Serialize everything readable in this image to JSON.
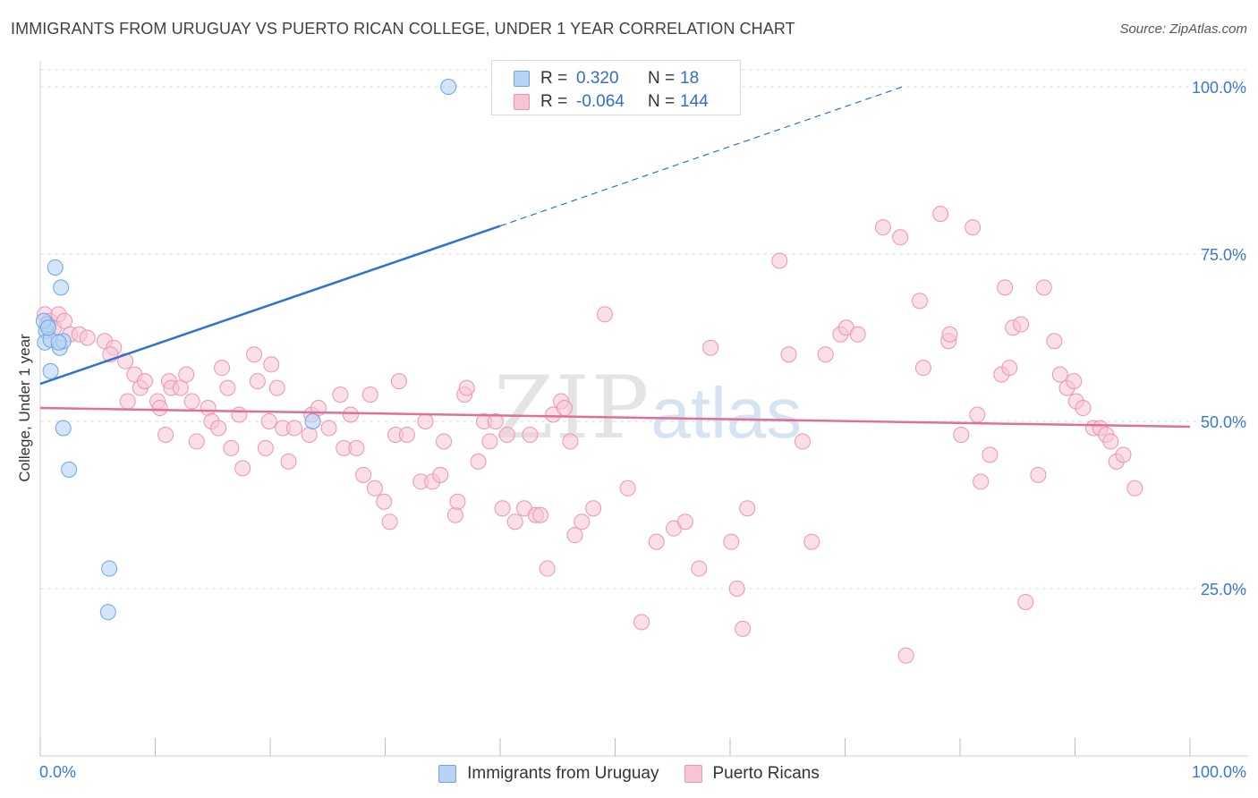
{
  "header": {
    "title": "IMMIGRANTS FROM URUGUAY VS PUERTO RICAN COLLEGE, UNDER 1 YEAR CORRELATION CHART",
    "source": "Source: ZipAtlas.com"
  },
  "watermark": {
    "zip": "ZIP",
    "atlas": "atlas"
  },
  "legend_top": {
    "rows": [
      {
        "r_label": "R =",
        "r_value": "0.320",
        "n_label": "N =",
        "n_value": "18"
      },
      {
        "r_label": "R =",
        "r_value": "-0.064",
        "n_label": "N =",
        "n_value": "144"
      }
    ]
  },
  "legend_bottom": {
    "series_a": "Immigrants from Uruguay",
    "series_b": "Puerto Ricans"
  },
  "colors": {
    "blue_fill": "#b6d3f5",
    "blue_stroke": "#6fa3e6",
    "blue_line": "#2f72d0",
    "pink_fill": "#f8c4d4",
    "pink_stroke": "#ec94b2",
    "pink_line": "#e0709a",
    "grid": "#dcdcdc",
    "tick_label": "#3a78d0"
  },
  "chart_data": {
    "type": "scatter",
    "title": "IMMIGRANTS FROM URUGUAY VS PUERTO RICAN COLLEGE, UNDER 1 YEAR CORRELATION CHART",
    "xlabel": "",
    "ylabel": "College, Under 1 year",
    "xlim": [
      0,
      100
    ],
    "ylim": [
      0,
      102
    ],
    "x_tick_labels": [
      "0.0%",
      "100.0%"
    ],
    "y_ticks": [
      25,
      50,
      75,
      100
    ],
    "y_tick_labels": [
      "25.0%",
      "50.0%",
      "75.0%",
      "100.0%"
    ],
    "series": [
      {
        "name": "Immigrants from Uruguay",
        "color": "#b6d3f5",
        "r": "0.320",
        "n": "18",
        "trend": {
          "x": [
            0,
            40
          ],
          "y": [
            55.6,
            79.2
          ],
          "dashed_to": [
            75,
            100
          ]
        },
        "points": [
          [
            0.5,
            63.5
          ],
          [
            0.4,
            61.8
          ],
          [
            0.6,
            64.5
          ],
          [
            0.9,
            62.2
          ],
          [
            1.3,
            73.0
          ],
          [
            1.8,
            70.0
          ],
          [
            1.7,
            61.0
          ],
          [
            2.0,
            62.0
          ],
          [
            1.6,
            61.8
          ],
          [
            0.9,
            57.5
          ],
          [
            2.0,
            49.0
          ],
          [
            2.5,
            42.8
          ],
          [
            6.0,
            28.0
          ],
          [
            5.9,
            21.5
          ],
          [
            23.7,
            50.0
          ],
          [
            35.5,
            100.0
          ],
          [
            0.3,
            65.0
          ],
          [
            0.7,
            64.0
          ]
        ]
      },
      {
        "name": "Puerto Ricans",
        "color": "#f8c4d4",
        "r": "-0.064",
        "n": "144",
        "trend": {
          "x": [
            0,
            100
          ],
          "y": [
            52.0,
            49.2
          ]
        },
        "points": [
          [
            0.4,
            66
          ],
          [
            0.8,
            65
          ],
          [
            1.2,
            64
          ],
          [
            1.6,
            66
          ],
          [
            2.1,
            65
          ],
          [
            2.6,
            63
          ],
          [
            3.4,
            63
          ],
          [
            4.1,
            62.5
          ],
          [
            5.6,
            62
          ],
          [
            6.4,
            61
          ],
          [
            6.1,
            60
          ],
          [
            7.4,
            59
          ],
          [
            8.2,
            57
          ],
          [
            8.7,
            55
          ],
          [
            9.1,
            56
          ],
          [
            10.2,
            53
          ],
          [
            10.4,
            52
          ],
          [
            11.2,
            56
          ],
          [
            11.4,
            55
          ],
          [
            12.2,
            55
          ],
          [
            12.7,
            57
          ],
          [
            13.2,
            53
          ],
          [
            13.6,
            47
          ],
          [
            14.6,
            52
          ],
          [
            14.9,
            50
          ],
          [
            15.5,
            49
          ],
          [
            16.3,
            55
          ],
          [
            16.6,
            46
          ],
          [
            17.3,
            51
          ],
          [
            18.6,
            60
          ],
          [
            18.9,
            56
          ],
          [
            19.6,
            46
          ],
          [
            19.9,
            50
          ],
          [
            20.6,
            55
          ],
          [
            21.1,
            49
          ],
          [
            21.6,
            44
          ],
          [
            22.1,
            49
          ],
          [
            23.6,
            51
          ],
          [
            23.4,
            48
          ],
          [
            24.2,
            52
          ],
          [
            25.1,
            49
          ],
          [
            26.1,
            54
          ],
          [
            27.0,
            51
          ],
          [
            26.4,
            46
          ],
          [
            27.5,
            46
          ],
          [
            28.1,
            42
          ],
          [
            28.7,
            54
          ],
          [
            29.1,
            40
          ],
          [
            29.9,
            38
          ],
          [
            30.4,
            35
          ],
          [
            30.9,
            48
          ],
          [
            31.2,
            56
          ],
          [
            31.9,
            48
          ],
          [
            33.1,
            41
          ],
          [
            33.5,
            50
          ],
          [
            34.1,
            41
          ],
          [
            34.8,
            42
          ],
          [
            35.1,
            47
          ],
          [
            36.1,
            36
          ],
          [
            36.3,
            38
          ],
          [
            36.9,
            54
          ],
          [
            37.1,
            55
          ],
          [
            38.1,
            44
          ],
          [
            38.6,
            50
          ],
          [
            39.1,
            47
          ],
          [
            39.6,
            50
          ],
          [
            40.2,
            37
          ],
          [
            40.6,
            48
          ],
          [
            41.3,
            35
          ],
          [
            42.1,
            37
          ],
          [
            42.6,
            48
          ],
          [
            43.1,
            36
          ],
          [
            43.5,
            36
          ],
          [
            44.1,
            28
          ],
          [
            44.6,
            51
          ],
          [
            45.3,
            53
          ],
          [
            45.6,
            52
          ],
          [
            46.1,
            47
          ],
          [
            46.5,
            33
          ],
          [
            47.1,
            35
          ],
          [
            48.1,
            37
          ],
          [
            49.1,
            66
          ],
          [
            51.1,
            40
          ],
          [
            52.3,
            20
          ],
          [
            53.6,
            32
          ],
          [
            55.1,
            34
          ],
          [
            56.1,
            35
          ],
          [
            57.3,
            28
          ],
          [
            58.3,
            61
          ],
          [
            60.1,
            32
          ],
          [
            60.6,
            25
          ],
          [
            61.1,
            19
          ],
          [
            61.5,
            37
          ],
          [
            64.3,
            74
          ],
          [
            65.1,
            60
          ],
          [
            66.3,
            47
          ],
          [
            67.1,
            32
          ],
          [
            68.3,
            60
          ],
          [
            69.6,
            63
          ],
          [
            70.1,
            64
          ],
          [
            71.1,
            63
          ],
          [
            73.3,
            79
          ],
          [
            74.8,
            77.5
          ],
          [
            75.3,
            15
          ],
          [
            76.5,
            68
          ],
          [
            76.8,
            58
          ],
          [
            78.3,
            81
          ],
          [
            79.0,
            62
          ],
          [
            79.1,
            63
          ],
          [
            80.1,
            48
          ],
          [
            81.1,
            79
          ],
          [
            81.5,
            51
          ],
          [
            81.8,
            41
          ],
          [
            82.6,
            45
          ],
          [
            83.6,
            57
          ],
          [
            83.9,
            70
          ],
          [
            84.3,
            58
          ],
          [
            84.6,
            64
          ],
          [
            85.3,
            64.5
          ],
          [
            85.7,
            23
          ],
          [
            86.8,
            42
          ],
          [
            87.3,
            70
          ],
          [
            88.2,
            62
          ],
          [
            88.7,
            57
          ],
          [
            89.3,
            55
          ],
          [
            89.9,
            56
          ],
          [
            90.1,
            53
          ],
          [
            90.7,
            52
          ],
          [
            91.6,
            49
          ],
          [
            92.2,
            49
          ],
          [
            92.7,
            48
          ],
          [
            93.1,
            47
          ],
          [
            93.6,
            44
          ],
          [
            94.2,
            45
          ],
          [
            95.2,
            40
          ],
          [
            7.6,
            53
          ],
          [
            15.8,
            58
          ],
          [
            17.6,
            43
          ],
          [
            20.1,
            58.5
          ],
          [
            10.9,
            48
          ]
        ]
      }
    ]
  }
}
